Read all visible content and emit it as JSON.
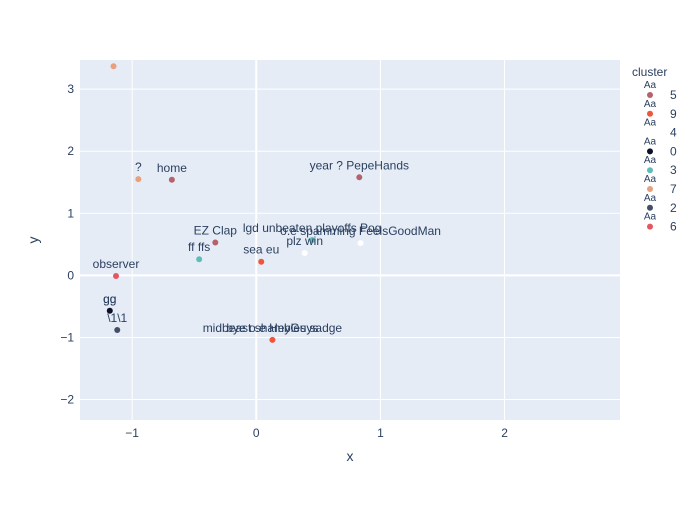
{
  "chart_data": {
    "type": "scatter",
    "title": "",
    "xlabel": "x",
    "ylabel": "y",
    "xlim": [
      -1.42,
      2.93
    ],
    "ylim": [
      -2.33,
      3.47
    ],
    "x_ticks": [
      -1,
      0,
      1,
      2
    ],
    "y_ticks": [
      -2,
      -1,
      0,
      1,
      2,
      3
    ],
    "x_tick_labels": [
      "−1",
      "0",
      "1",
      "2"
    ],
    "y_tick_labels": [
      "−2",
      "−1",
      "0",
      "1",
      "2",
      "3"
    ],
    "grid": true,
    "legend_position": "right",
    "legend_title": "cluster",
    "legend_glyph_text": "Aa",
    "plot_background": "#E5ECF6",
    "series": [
      {
        "name": "5",
        "color": "#B6616B",
        "points": [
          {
            "x": 0.83,
            "y": 1.58,
            "label": "year ? PepeHands"
          },
          {
            "x": -0.33,
            "y": 0.53,
            "label": "EZ Clap"
          },
          {
            "x": -0.68,
            "y": 1.54,
            "label": "home"
          }
        ]
      },
      {
        "name": "9",
        "color": "#EF553B",
        "points": [
          {
            "x": 0.04,
            "y": 0.22,
            "label": "sea eu"
          },
          {
            "x": 0.13,
            "y": -1.04,
            "label": "bye o.e HeyGuys"
          }
        ]
      },
      {
        "name": "4",
        "color": "#FFFFFF",
        "points": [
          {
            "x": 0.39,
            "y": 0.36,
            "label": "plz win"
          },
          {
            "x": 0.84,
            "y": 0.52,
            "label": "o.e spamming FeelsGoodMan"
          }
        ]
      },
      {
        "name": "0",
        "color": "#0D1128",
        "points": [
          {
            "x": -1.18,
            "y": -0.57,
            "label": "gg"
          }
        ]
      },
      {
        "name": "3",
        "color": "#5CBDB9",
        "points": [
          {
            "x": -0.46,
            "y": 0.26,
            "label": "ff ffs"
          },
          {
            "x": 0.45,
            "y": 0.57,
            "label": "lgd unbeaten playoffs Pog"
          }
        ]
      },
      {
        "name": "7",
        "color": "#E8A07E",
        "points": [
          {
            "x": -0.95,
            "y": 1.55,
            "label": "?"
          },
          {
            "x": -1.15,
            "y": 3.37,
            "label": ""
          }
        ]
      },
      {
        "name": "2",
        "color": "#425066",
        "points": [
          {
            "x": -1.12,
            "y": -0.88,
            "label": "\\1\\1"
          }
        ]
      },
      {
        "name": "6",
        "color": "#E5575F",
        "points": [
          {
            "x": -1.13,
            "y": -0.01,
            "label": "observer"
          }
        ]
      }
    ],
    "extra_labels": [
      {
        "x": -1.18,
        "y": -0.57,
        "label": "gg"
      },
      {
        "x": 0.13,
        "y": -1.04,
        "label": "midbeast shambles sadge"
      }
    ]
  }
}
